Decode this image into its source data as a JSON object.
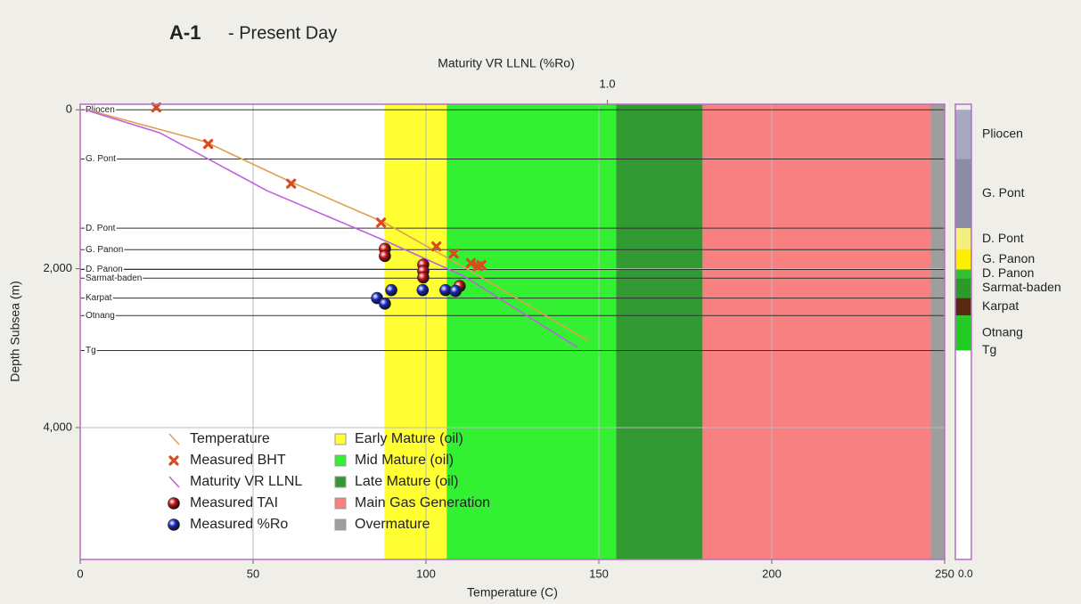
{
  "chart_data": {
    "type": "line",
    "title": "A-1",
    "subtitle": "- Present Day",
    "x_label": "Temperature (C)",
    "y_label": "Depth Subsea (m)",
    "x2_label": "Maturity VR LLNL (%Ro)",
    "xlim": [
      0,
      250
    ],
    "xticks": [
      0,
      50,
      100,
      150,
      200,
      250
    ],
    "x2lim": [
      0.2,
      2.8
    ],
    "x2_log": true,
    "x2ticks": [
      {
        "value": 1,
        "label": "1.0"
      }
    ],
    "ylim": [
      -70,
      5660
    ],
    "y_inverted": true,
    "yticks": [
      0,
      {
        "value": 2000,
        "label": "2,000"
      },
      {
        "value": 4000,
        "label": "4,000"
      }
    ],
    "grid": true,
    "legend": "lower-left",
    "strip_label": "0.0",
    "zones": [
      {
        "name": "Early Mature (oil)",
        "color": "#ffff33",
        "start": 88,
        "end": 106
      },
      {
        "name": "Mid Mature (oil)",
        "color": "#33f033",
        "start": 106,
        "end": 155
      },
      {
        "name": "Late Mature (oil)",
        "color": "#339933",
        "start": 155,
        "end": 180
      },
      {
        "name": "Main Gas Generation",
        "color": "#f88080",
        "start": 180,
        "end": 246
      },
      {
        "name": "Overmature",
        "color": "#9e9e9e",
        "start": 246,
        "end": 250
      }
    ],
    "formations": [
      {
        "name": "Pliocen",
        "depth": 0,
        "color": "#a8a8c0"
      },
      {
        "name": "G. Pont",
        "depth": 620,
        "color": "#8c8ca4"
      },
      {
        "name": "D. Pont",
        "depth": 1490,
        "color": "#f4f080"
      },
      {
        "name": "G. Panon",
        "depth": 1760,
        "color": "#ffee00"
      },
      {
        "name": "D. Panon",
        "depth": 2010,
        "color": "#30c030"
      },
      {
        "name": "Sarmat-baden",
        "depth": 2120,
        "color": "#2a9a2a"
      },
      {
        "name": "Karpat",
        "depth": 2370,
        "color": "#5a2a10"
      },
      {
        "name": "Otnang",
        "depth": 2590,
        "color": "#22cc22"
      },
      {
        "name": "Tg",
        "depth": 3030,
        "color": "#ffffff"
      }
    ],
    "series": [
      {
        "name": "Temperature",
        "marker": "line",
        "color": "#e0a050",
        "x": [
          2,
          36,
          61,
          88,
          111,
          147
        ],
        "values": [
          0,
          400,
          910,
          1420,
          1980,
          2910
        ]
      },
      {
        "name": "Measured BHT",
        "marker": "cross",
        "color": "#d84a20",
        "x": [
          22,
          37,
          61,
          87,
          103,
          108,
          113,
          115,
          116
        ],
        "values": [
          -30,
          430,
          930,
          1420,
          1720,
          1810,
          1930,
          1970,
          1955
        ]
      },
      {
        "name": "Maturity VR LLNL",
        "marker": "line",
        "axis": "x2",
        "color": "#c060e0",
        "x": [
          0.203,
          0.255,
          0.354,
          0.505,
          0.644,
          0.913
        ],
        "values": [
          0,
          290,
          1020,
          1640,
          2090,
          2990
        ]
      },
      {
        "name": "Measured TAI",
        "marker": "ball",
        "axis": "x2",
        "color": "#cc1010",
        "x": [
          0.507,
          0.507,
          0.57,
          0.57,
          0.57,
          0.637
        ],
        "values": [
          1750,
          1840,
          1950,
          2030,
          2110,
          2220
        ]
      },
      {
        "name": "Measured %Ro",
        "marker": "ball",
        "axis": "x2",
        "color": "#1828c0",
        "x": [
          0.495,
          0.507,
          0.517,
          0.569,
          0.61,
          0.629
        ],
        "values": [
          2370,
          2440,
          2270,
          2270,
          2270,
          2280
        ]
      }
    ]
  }
}
